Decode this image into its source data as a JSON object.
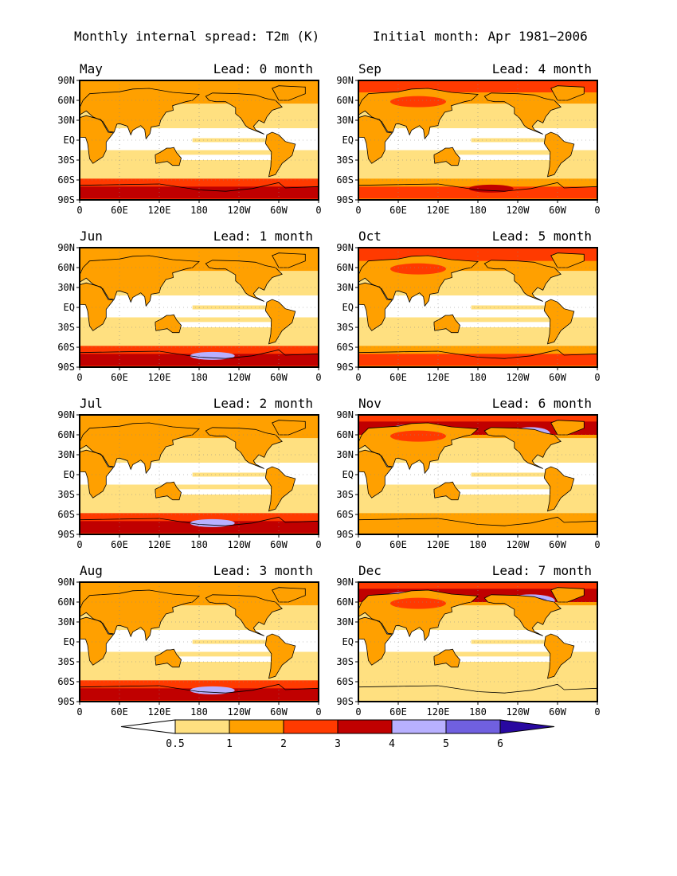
{
  "header": {
    "title": "Monthly internal spread: T2m (K)",
    "subtitle": "Initial month: Apr 1981−2006"
  },
  "lead_prefix": "Lead:",
  "lead_unit": "month",
  "lat_labels": [
    "90N",
    "60N",
    "30N",
    "EQ",
    "30S",
    "60S",
    "90S"
  ],
  "lon_labels": [
    "0",
    "60E",
    "120E",
    "180",
    "120W",
    "60W",
    "0"
  ],
  "panels": [
    {
      "month": "May",
      "lead": "0",
      "intensity": 0.15,
      "antarctic": [
        3,
        4
      ]
    },
    {
      "month": "Jun",
      "lead": "1",
      "intensity": 0.2,
      "antarctic": [
        3,
        4,
        5
      ]
    },
    {
      "month": "Jul",
      "lead": "2",
      "intensity": 0.1,
      "antarctic": [
        3,
        4,
        5
      ]
    },
    {
      "month": "Aug",
      "lead": "3",
      "intensity": 0.1,
      "antarctic": [
        3,
        4,
        5
      ]
    },
    {
      "month": "Sep",
      "lead": "4",
      "intensity": 0.3,
      "antarctic": [
        2,
        3,
        4
      ]
    },
    {
      "month": "Oct",
      "lead": "5",
      "intensity": 0.5,
      "antarctic": [
        2,
        3
      ]
    },
    {
      "month": "Nov",
      "lead": "6",
      "intensity": 0.8,
      "antarctic": [
        2
      ]
    },
    {
      "month": "Dec",
      "lead": "7",
      "intensity": 1.0,
      "antarctic": [
        1
      ]
    }
  ],
  "colorbar": {
    "ticks": [
      "0.5",
      "1",
      "2",
      "3",
      "4",
      "5",
      "6"
    ],
    "colors": [
      "#ffffff",
      "#ffe080",
      "#ffa000",
      "#ff3a00",
      "#c00000",
      "#b8b0ff",
      "#7060e0",
      "#2808a0"
    ]
  },
  "colors": {
    "frame": "#000000",
    "grid": "#888888",
    "continent_outline": "#000000"
  }
}
